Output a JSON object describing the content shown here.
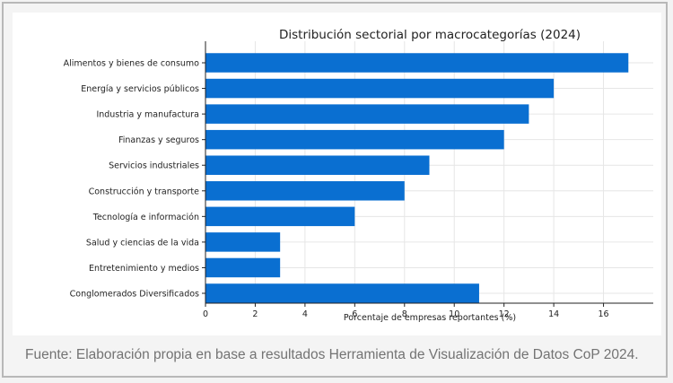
{
  "chart_data": {
    "type": "bar",
    "orientation": "horizontal",
    "title": "Distribución sectorial por macrocategorías (2024)",
    "xlabel": "Porcentaje de empresas reportantes (%)",
    "ylabel": "",
    "xlim": [
      0,
      18
    ],
    "xticks": [
      0,
      2,
      4,
      6,
      8,
      10,
      12,
      14,
      16
    ],
    "grid": true,
    "color": "#0a6fd1",
    "categories": [
      "Alimentos y bienes de consumo",
      "Energía y servicios públicos",
      "Industria y manufactura",
      "Finanzas y seguros",
      "Servicios industriales",
      "Construcción y transporte",
      "Tecnología e información",
      "Salud y ciencias de la vida",
      "Entretenimiento y medios",
      "Conglomerados Diversificados"
    ],
    "values": [
      17,
      14,
      13,
      12,
      9,
      8,
      6,
      3,
      3,
      11
    ]
  },
  "source_note": "Fuente: Elaboración propia en base a resultados Herramienta de Visualización de Datos CoP 2024."
}
